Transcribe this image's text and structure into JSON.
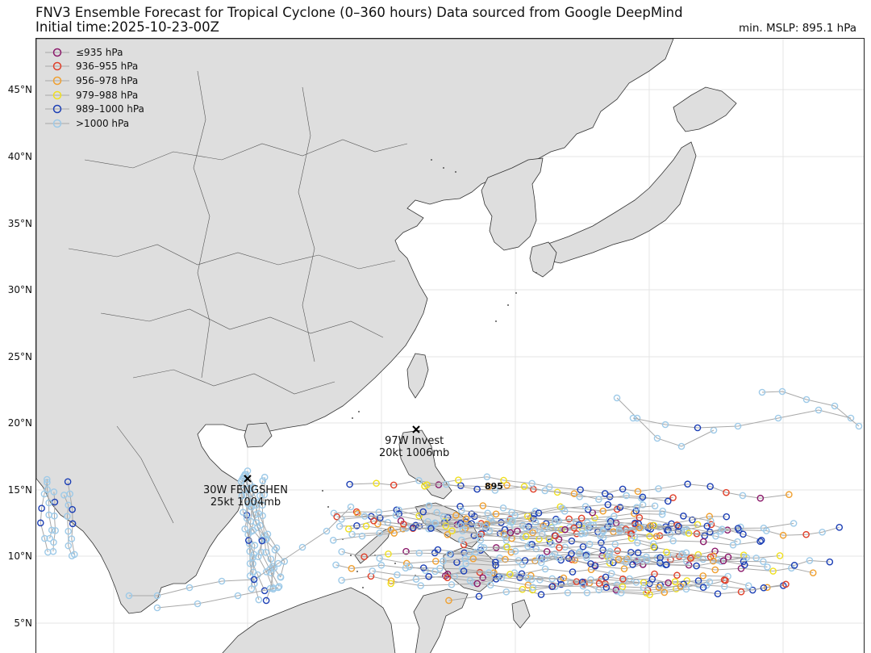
{
  "header": {
    "title": "FNV3 Ensemble Forecast for Tropical Cyclone (0–360 hours) Data sourced from Google DeepMind",
    "initial_time": "Initial time:2025-10-23-00Z",
    "min_mslp": "min. MSLP: 895.1 hPa"
  },
  "axis": {
    "lat_ticks": [
      "45°N",
      "40°N",
      "35°N",
      "30°N",
      "25°N",
      "20°N",
      "15°N",
      "10°N",
      "5°N"
    ]
  },
  "legend": [
    {
      "label": "≤935 hPa",
      "color": "#8b1a6b"
    },
    {
      "label": "936–955 hPa",
      "color": "#e0402a"
    },
    {
      "label": "956–978 hPa",
      "color": "#f0a030"
    },
    {
      "label": "979–988 hPa",
      "color": "#f0e020"
    },
    {
      "label": "989–1000 hPa",
      "color": "#1c3fb5"
    },
    {
      "label": ">1000 hPa",
      "color": "#9ecae8"
    }
  ],
  "storms": [
    {
      "name": "97W Invest",
      "info": "20kt 1006mb"
    },
    {
      "name": "30W FENGSHEN",
      "info": "25kt 1004mb"
    }
  ],
  "min_marker": "895",
  "colors": {
    "land": "#dedede",
    "ocean": "#ffffff",
    "track": "#a8a8a8",
    "border": "#555555"
  }
}
